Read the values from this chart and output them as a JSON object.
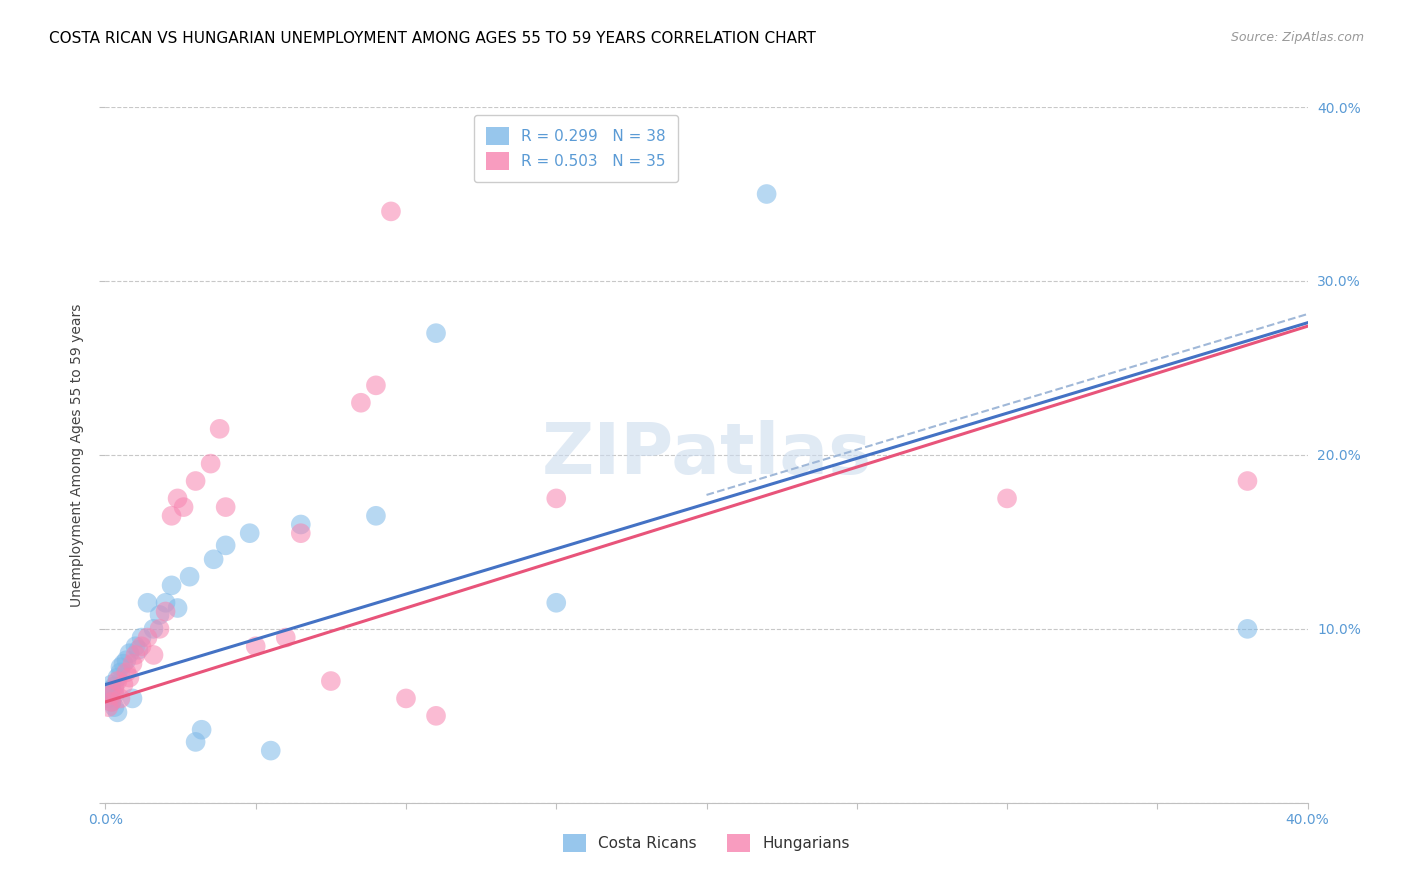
{
  "title": "COSTA RICAN VS HUNGARIAN UNEMPLOYMENT AMONG AGES 55 TO 59 YEARS CORRELATION CHART",
  "source": "Source: ZipAtlas.com",
  "ylabel": "Unemployment Among Ages 55 to 59 years",
  "xlim": [
    0.0,
    0.4
  ],
  "ylim": [
    0.0,
    0.4
  ],
  "right_yticks": [
    0.1,
    0.2,
    0.3,
    0.4
  ],
  "right_ytick_labels": [
    "10.0%",
    "20.0%",
    "30.0%",
    "40.0%"
  ],
  "xtick_positions": [
    0.0,
    0.05,
    0.1,
    0.15,
    0.2,
    0.25,
    0.3,
    0.35,
    0.4
  ],
  "xtick_labels": [
    "0.0%",
    "",
    "",
    "",
    "",
    "",
    "",
    "",
    "40.0%"
  ],
  "cr_R": 0.299,
  "cr_N": 38,
  "hu_R": 0.503,
  "hu_N": 35,
  "cr_color": "#7db8e8",
  "hu_color": "#f784b0",
  "legend_label_cr": "Costa Ricans",
  "legend_label_hu": "Hungarians",
  "cr_x": [
    0.001,
    0.001,
    0.002,
    0.002,
    0.002,
    0.003,
    0.003,
    0.003,
    0.004,
    0.004,
    0.005,
    0.005,
    0.006,
    0.007,
    0.008,
    0.009,
    0.01,
    0.011,
    0.012,
    0.014,
    0.016,
    0.018,
    0.02,
    0.022,
    0.024,
    0.028,
    0.03,
    0.032,
    0.036,
    0.04,
    0.048,
    0.055,
    0.065,
    0.09,
    0.11,
    0.15,
    0.22,
    0.38
  ],
  "cr_y": [
    0.06,
    0.063,
    0.058,
    0.065,
    0.068,
    0.055,
    0.062,
    0.067,
    0.052,
    0.072,
    0.075,
    0.078,
    0.08,
    0.082,
    0.086,
    0.06,
    0.09,
    0.088,
    0.095,
    0.115,
    0.1,
    0.108,
    0.115,
    0.125,
    0.112,
    0.13,
    0.035,
    0.042,
    0.14,
    0.148,
    0.155,
    0.03,
    0.16,
    0.165,
    0.27,
    0.115,
    0.35,
    0.1
  ],
  "hu_x": [
    0.001,
    0.002,
    0.002,
    0.003,
    0.004,
    0.005,
    0.006,
    0.007,
    0.008,
    0.009,
    0.01,
    0.012,
    0.014,
    0.016,
    0.018,
    0.02,
    0.022,
    0.024,
    0.026,
    0.03,
    0.035,
    0.038,
    0.04,
    0.05,
    0.06,
    0.065,
    0.075,
    0.085,
    0.09,
    0.095,
    0.1,
    0.11,
    0.15,
    0.3,
    0.38
  ],
  "hu_y": [
    0.055,
    0.058,
    0.062,
    0.065,
    0.07,
    0.06,
    0.068,
    0.075,
    0.072,
    0.08,
    0.085,
    0.09,
    0.095,
    0.085,
    0.1,
    0.11,
    0.165,
    0.175,
    0.17,
    0.185,
    0.195,
    0.215,
    0.17,
    0.09,
    0.095,
    0.155,
    0.07,
    0.23,
    0.24,
    0.34,
    0.06,
    0.05,
    0.175,
    0.175,
    0.185
  ],
  "background_color": "#ffffff",
  "grid_color": "#c8c8c8",
  "title_fontsize": 11,
  "axis_label_fontsize": 10,
  "tick_fontsize": 10,
  "tick_color": "#5b9bd5",
  "title_color": "#000000",
  "source_color": "#999999"
}
